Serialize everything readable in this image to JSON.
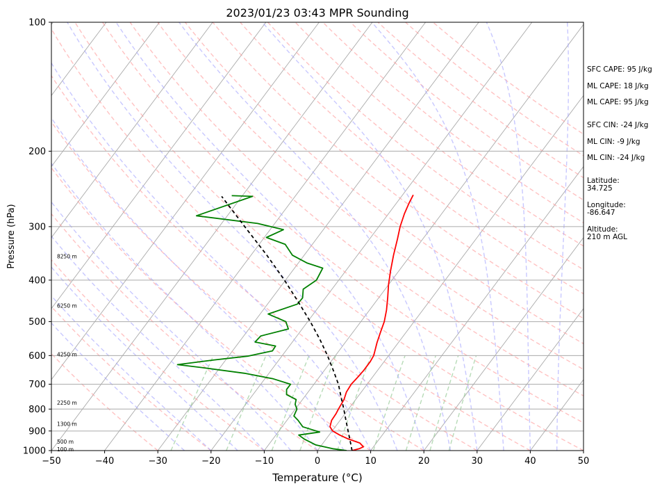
{
  "chart_data": {
    "type": "line",
    "title": "2023/01/23 03:43 MPR Sounding",
    "xlabel": "Temperature (°C)",
    "ylabel": "Pressure (hPa)",
    "xlim": [
      -50,
      50
    ],
    "ylim": [
      1000,
      100
    ],
    "y_scale": "log",
    "x_ticks": [
      "−50",
      "−40",
      "−30",
      "−20",
      "−10",
      "0",
      "10",
      "20",
      "30",
      "40",
      "50"
    ],
    "y_ticks": [
      "100",
      "200",
      "300",
      "400",
      "500",
      "600",
      "700",
      "800",
      "900",
      "1000"
    ],
    "grid": true,
    "series": [
      {
        "name": "",
        "color": "#ff0000",
        "points": [
          [
            1000,
            6.5
          ],
          [
            990,
            7.6
          ],
          [
            980,
            8.1
          ],
          [
            960,
            6.9
          ],
          [
            940,
            4.2
          ],
          [
            920,
            2.0
          ],
          [
            900,
            0.1
          ],
          [
            880,
            -1.0
          ],
          [
            850,
            -1.6
          ],
          [
            820,
            -1.7
          ],
          [
            800,
            -1.9
          ],
          [
            760,
            -2.2
          ],
          [
            730,
            -2.8
          ],
          [
            700,
            -3.0
          ],
          [
            680,
            -2.8
          ],
          [
            650,
            -2.6
          ],
          [
            620,
            -2.6
          ],
          [
            600,
            -2.8
          ],
          [
            580,
            -3.4
          ],
          [
            560,
            -4.0
          ],
          [
            530,
            -4.8
          ],
          [
            500,
            -5.6
          ],
          [
            470,
            -6.8
          ],
          [
            440,
            -8.3
          ],
          [
            410,
            -10.0
          ],
          [
            380,
            -11.6
          ],
          [
            350,
            -13.2
          ],
          [
            320,
            -14.8
          ],
          [
            300,
            -16.0
          ],
          [
            280,
            -17.0
          ],
          [
            265,
            -17.6
          ],
          [
            253,
            -18.0
          ]
        ]
      },
      {
        "name": "",
        "color": "#008000",
        "points": [
          [
            1000,
            5.5
          ],
          [
            990,
            2.6
          ],
          [
            970,
            -1.1
          ],
          [
            940,
            -4.1
          ],
          [
            920,
            -5.7
          ],
          [
            905,
            -2.2
          ],
          [
            880,
            -6.1
          ],
          [
            850,
            -7.9
          ],
          [
            830,
            -9.3
          ],
          [
            800,
            -9.7
          ],
          [
            780,
            -10.7
          ],
          [
            760,
            -11.2
          ],
          [
            740,
            -13.7
          ],
          [
            720,
            -14.4
          ],
          [
            700,
            -14.4
          ],
          [
            680,
            -18.4
          ],
          [
            660,
            -24.6
          ],
          [
            640,
            -33.4
          ],
          [
            630,
            -38.4
          ],
          [
            615,
            -32.4
          ],
          [
            602,
            -26.4
          ],
          [
            585,
            -22.5
          ],
          [
            570,
            -22.6
          ],
          [
            558,
            -27.0
          ],
          [
            540,
            -26.8
          ],
          [
            520,
            -22.6
          ],
          [
            500,
            -24.1
          ],
          [
            480,
            -28.5
          ],
          [
            455,
            -24.4
          ],
          [
            440,
            -24.3
          ],
          [
            420,
            -25.4
          ],
          [
            400,
            -24.2
          ],
          [
            375,
            -24.7
          ],
          [
            365,
            -28.3
          ],
          [
            350,
            -32.2
          ],
          [
            330,
            -35.1
          ],
          [
            318,
            -39.6
          ],
          [
            305,
            -37.5
          ],
          [
            295,
            -43.2
          ],
          [
            283,
            -55.8
          ],
          [
            255,
            -48.0
          ],
          [
            254,
            -52.0
          ]
        ]
      },
      {
        "name": "",
        "color": "#000000",
        "dashed": true,
        "points": [
          [
            1000,
            6.5
          ],
          [
            950,
            4.8
          ],
          [
            900,
            3.0
          ],
          [
            850,
            1.1
          ],
          [
            800,
            -0.9
          ],
          [
            750,
            -3.1
          ],
          [
            700,
            -5.4
          ],
          [
            650,
            -8.3
          ],
          [
            600,
            -11.5
          ],
          [
            550,
            -15.2
          ],
          [
            500,
            -19.5
          ],
          [
            450,
            -24.5
          ],
          [
            400,
            -30.2
          ],
          [
            350,
            -37.0
          ],
          [
            300,
            -45.2
          ],
          [
            255,
            -53.8
          ]
        ]
      }
    ],
    "isotherm_color": "#aaaaaa",
    "dry_adiabat_color": "#ff9999",
    "moist_adiabat_color": "#aaaaff",
    "mixing_ratio_color": "#99cc99",
    "height_labels": [
      {
        "text": "100 m",
        "p": 992
      },
      {
        "text": "500 m",
        "p": 952
      },
      {
        "text": "1300 m",
        "p": 866
      },
      {
        "text": "2250 m",
        "p": 772
      },
      {
        "text": "4250 m",
        "p": 596
      },
      {
        "text": "6250 m",
        "p": 459
      },
      {
        "text": "8250 m",
        "p": 352
      }
    ],
    "annotations": {
      "sfc_cape": "SFC CAPE: 95 J/kg",
      "ml_cape_1": "ML CAPE: 18 J/kg",
      "ml_cape_2": "ML CAPE: 95 J/kg",
      "sfc_cin": "SFC CIN: -24 J/kg",
      "ml_cin_1": "ML CIN: -9 J/kg",
      "ml_cin_2": "ML CIN: -24 J/kg",
      "latitude": "Latitude:\n34.725",
      "longitude": "Longitude:\n-86.647",
      "altitude": "Altitude:\n210 m AGL"
    }
  }
}
